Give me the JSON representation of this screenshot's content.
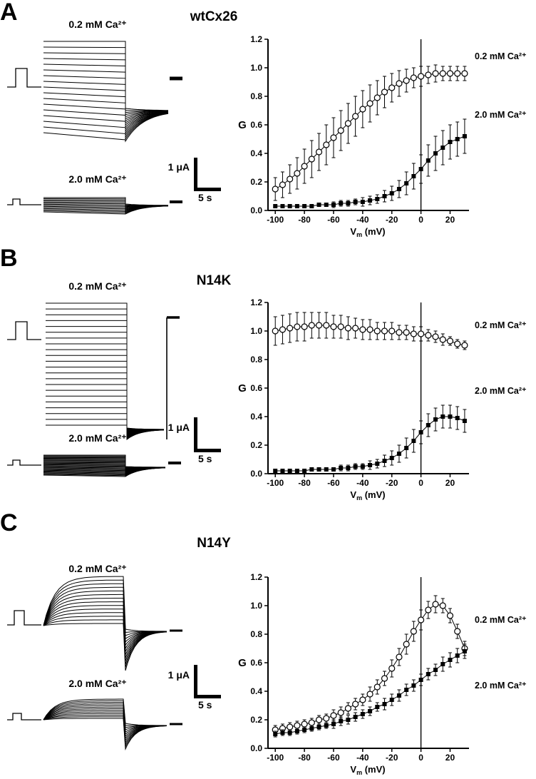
{
  "figure": {
    "panels": [
      {
        "letter": "A",
        "title": "wtCx26",
        "labels": {
          "low_ca": "0.2 mM Ca²⁺",
          "high_ca": "2.0 mM Ca²⁺",
          "scale_current": "1 μA",
          "scale_time": "5 s"
        }
      },
      {
        "letter": "B",
        "title": "N14K",
        "labels": {
          "low_ca": "0.2 mM Ca²⁺",
          "high_ca": "2.0 mM Ca²⁺",
          "scale_current": "1 μA",
          "scale_time": "5 s"
        }
      },
      {
        "letter": "C",
        "title": "N14Y",
        "labels": {
          "low_ca": "0.2 mM Ca²⁺",
          "high_ca": "2.0 mM Ca²⁺",
          "scale_current": "1 μA",
          "scale_time": "5 s"
        }
      }
    ]
  },
  "chart_data": [
    {
      "panel": "A",
      "type": "scatter",
      "title": "wtCx26",
      "xlabel": "Vm (mV)",
      "xlabel_parts": {
        "v": "V",
        "sub": "m",
        "unit": " (mV)"
      },
      "ylabel": "G",
      "xlim": [
        -105,
        32
      ],
      "ylim": [
        0,
        1.2
      ],
      "xticks": [
        -100,
        -80,
        -60,
        -40,
        -20,
        0,
        20
      ],
      "yticks": [
        0.0,
        0.2,
        0.4,
        0.6,
        0.8,
        1.0,
        1.2
      ],
      "zero_line": true,
      "x": [
        -100,
        -95,
        -90,
        -85,
        -80,
        -75,
        -70,
        -65,
        -60,
        -55,
        -50,
        -45,
        -40,
        -35,
        -30,
        -25,
        -20,
        -15,
        -10,
        -5,
        0,
        5,
        10,
        15,
        20,
        25,
        30
      ],
      "series": [
        {
          "name": "0.2 mM Ca²⁺",
          "marker": "open-circle",
          "label_g": 1.08,
          "y": [
            0.15,
            0.18,
            0.22,
            0.26,
            0.31,
            0.36,
            0.41,
            0.46,
            0.51,
            0.56,
            0.61,
            0.66,
            0.71,
            0.75,
            0.79,
            0.83,
            0.86,
            0.89,
            0.91,
            0.93,
            0.94,
            0.95,
            0.96,
            0.96,
            0.96,
            0.96,
            0.96
          ],
          "err": [
            0.08,
            0.09,
            0.1,
            0.11,
            0.12,
            0.13,
            0.13,
            0.14,
            0.14,
            0.14,
            0.14,
            0.14,
            0.13,
            0.13,
            0.12,
            0.11,
            0.1,
            0.09,
            0.08,
            0.07,
            0.07,
            0.06,
            0.06,
            0.05,
            0.05,
            0.05,
            0.05
          ]
        },
        {
          "name": "2.0 mM Ca²⁺",
          "marker": "filled-square",
          "label_g": 0.67,
          "y": [
            0.03,
            0.03,
            0.03,
            0.03,
            0.03,
            0.03,
            0.04,
            0.04,
            0.04,
            0.05,
            0.05,
            0.06,
            0.06,
            0.07,
            0.08,
            0.1,
            0.12,
            0.15,
            0.19,
            0.24,
            0.29,
            0.35,
            0.4,
            0.44,
            0.48,
            0.5,
            0.52
          ],
          "err": [
            0.01,
            0.01,
            0.01,
            0.01,
            0.01,
            0.01,
            0.01,
            0.01,
            0.02,
            0.02,
            0.02,
            0.02,
            0.03,
            0.03,
            0.03,
            0.04,
            0.05,
            0.06,
            0.08,
            0.09,
            0.1,
            0.11,
            0.12,
            0.12,
            0.12,
            0.12,
            0.12
          ]
        }
      ]
    },
    {
      "panel": "B",
      "type": "scatter",
      "title": "N14K",
      "xlabel": "Vm (mV)",
      "xlabel_parts": {
        "v": "V",
        "sub": "m",
        "unit": " (mV)"
      },
      "ylabel": "G",
      "xlim": [
        -105,
        32
      ],
      "ylim": [
        0,
        1.2
      ],
      "xticks": [
        -100,
        -80,
        -60,
        -40,
        -20,
        0,
        20
      ],
      "yticks": [
        0.0,
        0.2,
        0.4,
        0.6,
        0.8,
        1.0,
        1.2
      ],
      "zero_line": true,
      "x": [
        -100,
        -95,
        -90,
        -85,
        -80,
        -75,
        -70,
        -65,
        -60,
        -55,
        -50,
        -45,
        -40,
        -35,
        -30,
        -25,
        -20,
        -15,
        -10,
        -5,
        0,
        5,
        10,
        15,
        20,
        25,
        30
      ],
      "series": [
        {
          "name": "0.2 mM Ca²⁺",
          "marker": "open-circle",
          "label_g": 1.04,
          "y": [
            1.0,
            1.01,
            1.02,
            1.03,
            1.03,
            1.04,
            1.04,
            1.04,
            1.03,
            1.03,
            1.02,
            1.02,
            1.01,
            1.01,
            1.0,
            1.0,
            1.0,
            0.99,
            0.99,
            0.98,
            0.98,
            0.97,
            0.96,
            0.94,
            0.93,
            0.91,
            0.9
          ],
          "err": [
            0.1,
            0.1,
            0.1,
            0.1,
            0.1,
            0.09,
            0.09,
            0.09,
            0.08,
            0.08,
            0.08,
            0.07,
            0.07,
            0.07,
            0.06,
            0.06,
            0.06,
            0.05,
            0.05,
            0.05,
            0.05,
            0.04,
            0.04,
            0.04,
            0.03,
            0.03,
            0.03
          ]
        },
        {
          "name": "2.0 mM Ca²⁺",
          "marker": "filled-square",
          "label_g": 0.58,
          "y": [
            0.02,
            0.02,
            0.02,
            0.02,
            0.02,
            0.03,
            0.03,
            0.03,
            0.03,
            0.04,
            0.04,
            0.05,
            0.05,
            0.06,
            0.07,
            0.09,
            0.11,
            0.14,
            0.18,
            0.23,
            0.29,
            0.34,
            0.38,
            0.4,
            0.4,
            0.39,
            0.37
          ],
          "err": [
            0.01,
            0.01,
            0.01,
            0.01,
            0.01,
            0.01,
            0.01,
            0.01,
            0.01,
            0.02,
            0.02,
            0.02,
            0.02,
            0.03,
            0.03,
            0.04,
            0.05,
            0.06,
            0.07,
            0.08,
            0.08,
            0.08,
            0.08,
            0.08,
            0.08,
            0.08,
            0.08
          ]
        }
      ]
    },
    {
      "panel": "C",
      "type": "scatter",
      "title": "N14Y",
      "xlabel": "Vm (mV)",
      "xlabel_parts": {
        "v": "V",
        "sub": "m",
        "unit": " (mV)"
      },
      "ylabel": "G",
      "xlim": [
        -105,
        32
      ],
      "ylim": [
        0,
        1.2
      ],
      "xticks": [
        -100,
        -80,
        -60,
        -40,
        -20,
        0,
        20
      ],
      "yticks": [
        0.0,
        0.2,
        0.4,
        0.6,
        0.8,
        1.0,
        1.2
      ],
      "zero_line": true,
      "x": [
        -100,
        -95,
        -90,
        -85,
        -80,
        -75,
        -70,
        -65,
        -60,
        -55,
        -50,
        -45,
        -40,
        -35,
        -30,
        -25,
        -20,
        -15,
        -10,
        -5,
        0,
        5,
        10,
        15,
        20,
        25,
        30
      ],
      "series": [
        {
          "name": "0.2 mM Ca²⁺",
          "marker": "open-circle",
          "label_g": 0.9,
          "y": [
            0.13,
            0.14,
            0.15,
            0.16,
            0.17,
            0.18,
            0.2,
            0.21,
            0.23,
            0.25,
            0.28,
            0.31,
            0.34,
            0.38,
            0.43,
            0.49,
            0.56,
            0.64,
            0.73,
            0.82,
            0.9,
            0.97,
            1.01,
            1.0,
            0.93,
            0.82,
            0.7
          ],
          "err": [
            0.03,
            0.03,
            0.03,
            0.03,
            0.03,
            0.03,
            0.03,
            0.03,
            0.04,
            0.04,
            0.04,
            0.04,
            0.04,
            0.05,
            0.05,
            0.05,
            0.06,
            0.06,
            0.07,
            0.07,
            0.07,
            0.06,
            0.06,
            0.05,
            0.05,
            0.05,
            0.05
          ]
        },
        {
          "name": "2.0 mM Ca²⁺",
          "marker": "filled-square",
          "label_g": 0.44,
          "y": [
            0.1,
            0.11,
            0.11,
            0.12,
            0.13,
            0.14,
            0.15,
            0.16,
            0.17,
            0.19,
            0.2,
            0.22,
            0.24,
            0.26,
            0.29,
            0.31,
            0.34,
            0.37,
            0.41,
            0.44,
            0.48,
            0.52,
            0.55,
            0.59,
            0.62,
            0.65,
            0.68
          ],
          "err": [
            0.02,
            0.02,
            0.02,
            0.02,
            0.02,
            0.02,
            0.02,
            0.02,
            0.03,
            0.03,
            0.03,
            0.03,
            0.03,
            0.03,
            0.03,
            0.04,
            0.04,
            0.04,
            0.04,
            0.04,
            0.04,
            0.04,
            0.04,
            0.05,
            0.05,
            0.05,
            0.05
          ]
        }
      ]
    }
  ]
}
